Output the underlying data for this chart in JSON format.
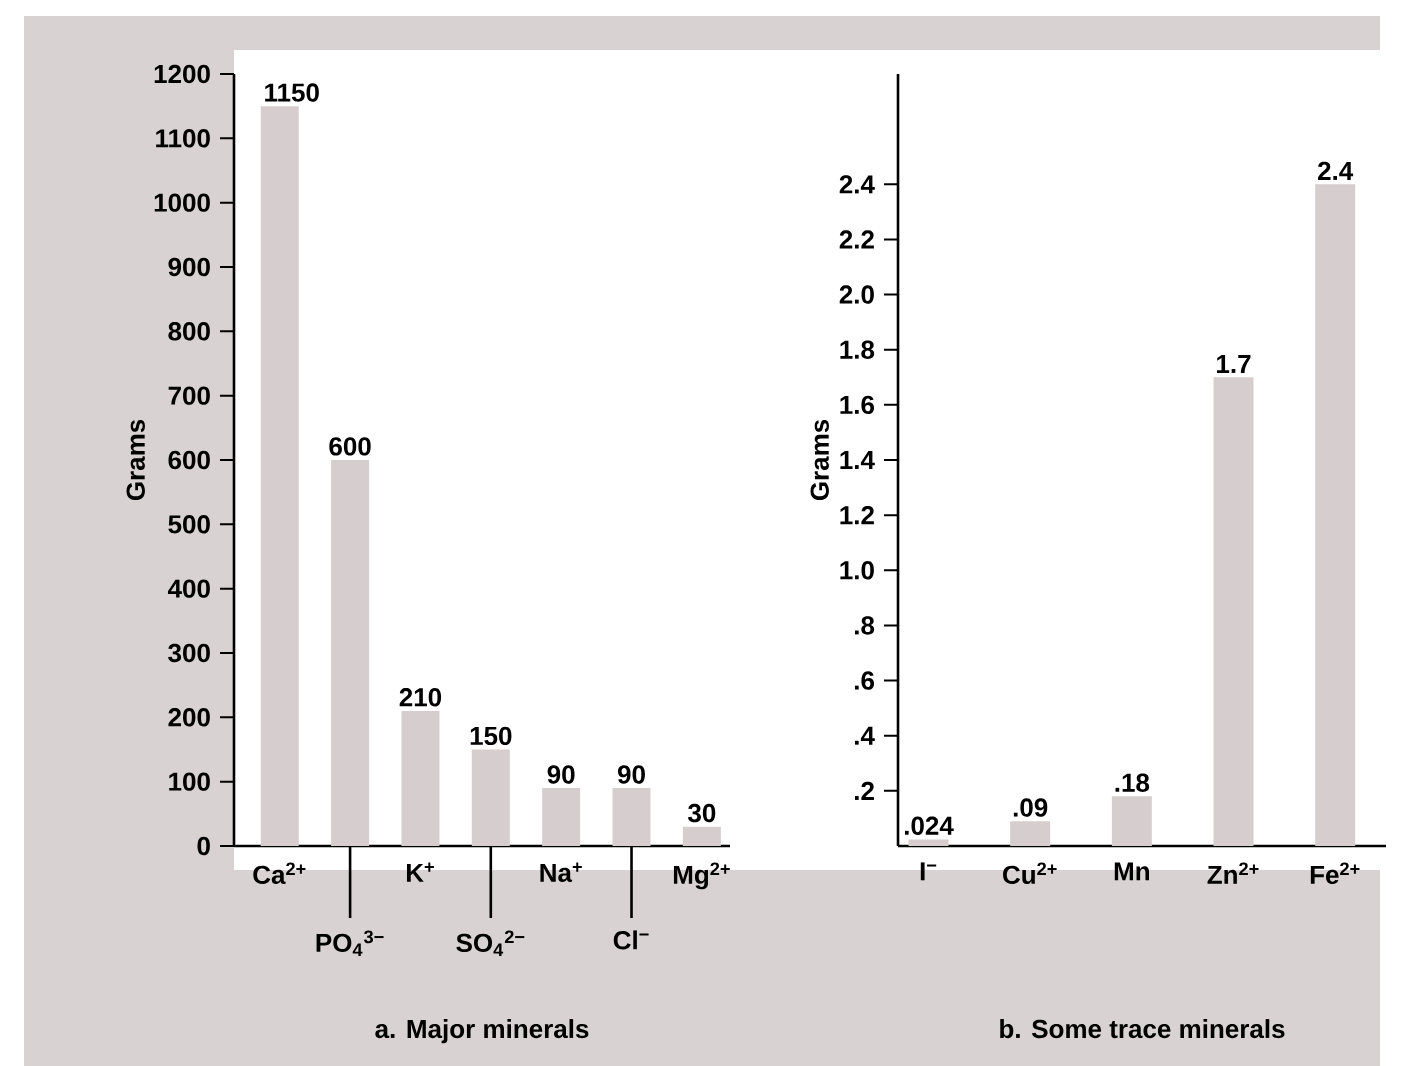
{
  "chart_data": [
    {
      "type": "bar",
      "xlabel": "a. Major minerals",
      "ylabel": "Grams",
      "categories": [
        "Ca$^{2+}$",
        "PO$_{4}$$^{3−}$",
        "K$^{+}$",
        "SO$_{4}$$^{2−}$",
        "Na$^{+}$",
        "Cl$^{−}$",
        "Mg$^{2+}$"
      ],
      "values": [
        1150,
        600,
        210,
        150,
        90,
        90,
        30
      ],
      "value_labels": [
        "1150",
        "600",
        "210",
        "150",
        "90",
        "90",
        "30"
      ],
      "color": "#d6cece",
      "ylim": [
        0,
        1200
      ],
      "yticks": [
        0,
        100,
        200,
        300,
        400,
        500,
        600,
        700,
        800,
        900,
        1000,
        1100,
        1200
      ]
    },
    {
      "type": "bar",
      "xlabel": "b. Some trace minerals",
      "ylabel": "Grams",
      "categories": [
        "I$^{−}$",
        "Cu$^{2+}$",
        "Mn",
        "Zn$^{2+}$",
        "Fe$^{2+}$"
      ],
      "values": [
        0.024,
        0.09,
        0.18,
        1.7,
        2.4
      ],
      "value_labels": [
        ".024",
        ".09",
        ".18",
        "1.7",
        "2.4"
      ],
      "color": "#d6cece",
      "ylim": [
        0,
        2.8
      ],
      "yticks": [
        {
          "value": 0.2,
          "label": ".2"
        },
        {
          "value": 0.4,
          "label": ".4"
        },
        {
          "value": 0.6,
          "label": ".6"
        },
        {
          "value": 0.8,
          "label": ".8"
        },
        {
          "value": 1,
          "label": "1.0"
        },
        1.2,
        1.4,
        1.6,
        1.8,
        {
          "value": 2,
          "label": "2.0"
        },
        2.2,
        2.4
      ]
    }
  ]
}
